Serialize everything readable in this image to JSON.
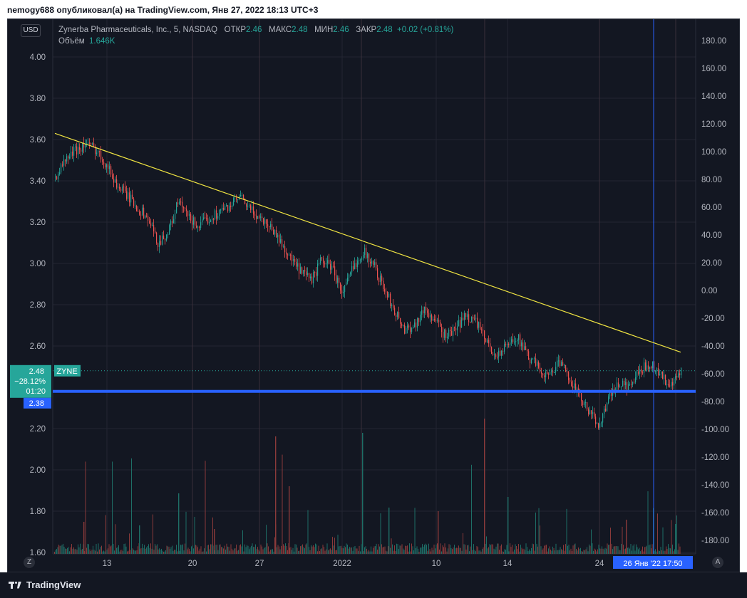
{
  "header": {
    "text": "nemogy688 опубликовал(а) на TradingView.com, Янв 27, 2022 18:13 UTC+3"
  },
  "legend": {
    "title": "Zynerba Pharmaceuticals, Inc., 5, NASDAQ",
    "open_label": "ОТКР",
    "open": "2.46",
    "high_label": "МАКС",
    "high": "2.48",
    "low_label": "МИН",
    "low": "2.46",
    "close_label": "ЗАКР",
    "close": "2.48",
    "change": "+0.02 (+0.81%)",
    "volume_label": "Объём",
    "volume": "1.646K"
  },
  "currency_button": "USD",
  "corner_buttons": {
    "left": "Z",
    "right": "A"
  },
  "price_tag": {
    "price": "2.48",
    "change_pct": "−28.12%",
    "countdown": "01:20",
    "color": "#26a69a"
  },
  "symbol_tag": "ZYNE",
  "line_tag": {
    "price": "2.38",
    "color": "#2962ff"
  },
  "crosshair_time_label": "26 Янв '22   17:50",
  "footer": {
    "brand": "TradingView"
  },
  "chart_data": {
    "type": "candlestick",
    "symbol": "ZYNE",
    "interval": "5",
    "exchange": "NASDAQ",
    "x_tick_labels": [
      "13",
      "20",
      "27",
      "2022",
      "10",
      "14",
      "24"
    ],
    "left_axis": {
      "ticks": [
        "4.00",
        "3.80",
        "3.60",
        "3.40",
        "3.20",
        "3.00",
        "2.80",
        "2.60",
        "2.20",
        "2.00",
        "1.80",
        "1.60"
      ],
      "ylim": [
        1.6,
        4.06
      ]
    },
    "right_axis": {
      "ticks": [
        "180.00",
        "160.00",
        "140.00",
        "120.00",
        "100.00",
        "80.00",
        "60.00",
        "40.00",
        "20.00",
        "0.00",
        "-20.00",
        "-40.00",
        "-60.00",
        "-80.00",
        "-100.00",
        "-120.00",
        "-140.00",
        "-160.00",
        "-180.00"
      ]
    },
    "close_path": [
      [
        0,
        3.42
      ],
      [
        2,
        3.5
      ],
      [
        4,
        3.55
      ],
      [
        6,
        3.58
      ],
      [
        8,
        3.55
      ],
      [
        10,
        3.48
      ],
      [
        12,
        3.38
      ],
      [
        14,
        3.33
      ],
      [
        16,
        3.27
      ],
      [
        18,
        3.22
      ],
      [
        20,
        3.1
      ],
      [
        22,
        3.15
      ],
      [
        24,
        3.3
      ],
      [
        26,
        3.22
      ],
      [
        28,
        3.18
      ],
      [
        30,
        3.22
      ],
      [
        32,
        3.25
      ],
      [
        34,
        3.28
      ],
      [
        36,
        3.32
      ],
      [
        38,
        3.26
      ],
      [
        40,
        3.22
      ],
      [
        42,
        3.18
      ],
      [
        44,
        3.1
      ],
      [
        46,
        3.02
      ],
      [
        48,
        2.95
      ],
      [
        50,
        2.92
      ],
      [
        52,
        3.02
      ],
      [
        54,
        2.98
      ],
      [
        56,
        2.85
      ],
      [
        58,
        2.98
      ],
      [
        60,
        3.06
      ],
      [
        62,
        3.0
      ],
      [
        64,
        2.88
      ],
      [
        66,
        2.78
      ],
      [
        68,
        2.68
      ],
      [
        70,
        2.7
      ],
      [
        72,
        2.78
      ],
      [
        74,
        2.72
      ],
      [
        76,
        2.65
      ],
      [
        78,
        2.68
      ],
      [
        80,
        2.75
      ],
      [
        82,
        2.72
      ],
      [
        84,
        2.62
      ],
      [
        86,
        2.55
      ],
      [
        88,
        2.6
      ],
      [
        90,
        2.65
      ],
      [
        92,
        2.55
      ],
      [
        94,
        2.5
      ],
      [
        96,
        2.45
      ],
      [
        98,
        2.52
      ],
      [
        100,
        2.46
      ],
      [
        102,
        2.36
      ],
      [
        104,
        2.28
      ],
      [
        106,
        2.22
      ],
      [
        108,
        2.35
      ],
      [
        110,
        2.42
      ],
      [
        112,
        2.4
      ],
      [
        114,
        2.48
      ],
      [
        116,
        2.52
      ],
      [
        118,
        2.46
      ],
      [
        120,
        2.4
      ],
      [
        122,
        2.48
      ]
    ],
    "trendline": {
      "from": [
        0,
        3.63
      ],
      "to": [
        122,
        2.57
      ],
      "color": "#f0e442"
    },
    "horizontal_line": {
      "price": 2.38,
      "color": "#2962ff"
    },
    "last_price": 2.48,
    "up_color": "#26a69a",
    "down_color": "#ef5350",
    "grid": true
  }
}
